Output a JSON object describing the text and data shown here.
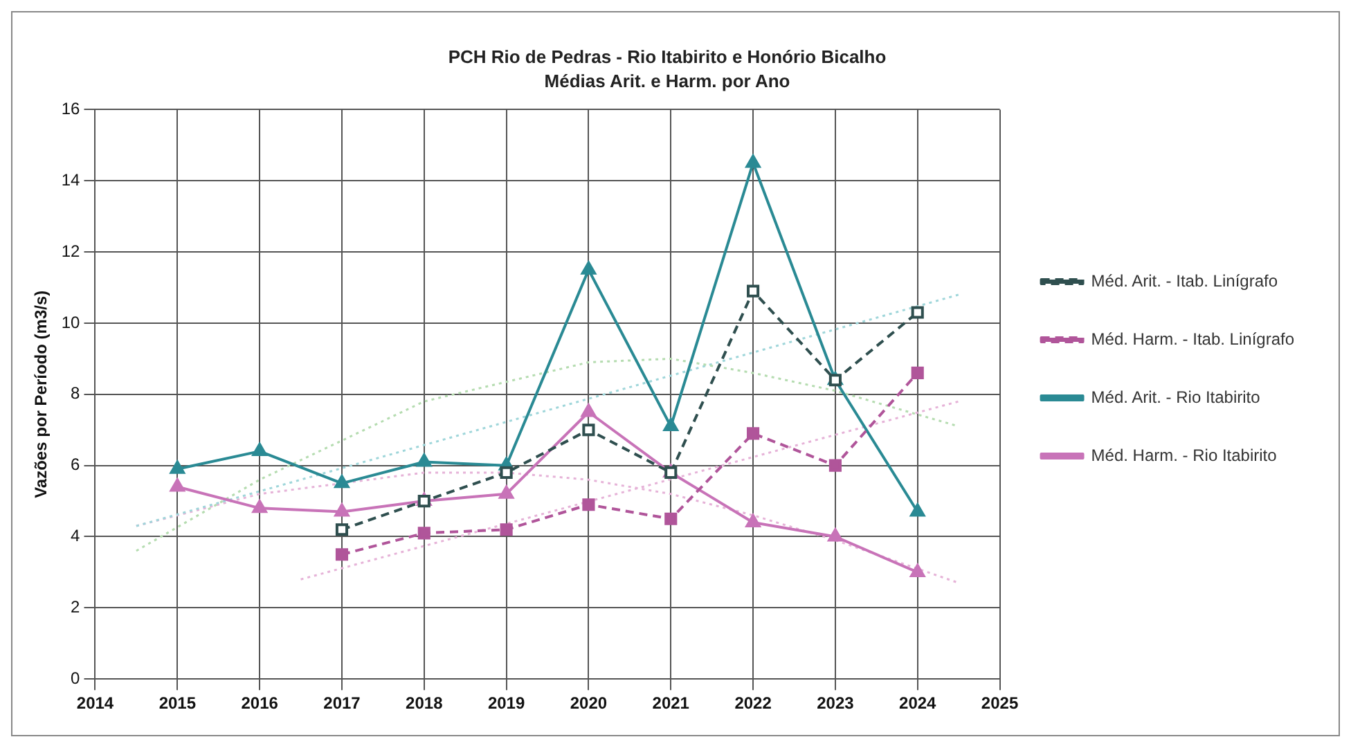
{
  "chart_data": {
    "type": "line",
    "title": "PCH Rio de Pedras - Rio Itabirito e Honório Bicalho",
    "subtitle": "Médias Arit. e Harm. por Ano",
    "ylabel": "Vazões por Período (m3/s)",
    "x": [
      2015,
      2016,
      2017,
      2018,
      2019,
      2020,
      2021,
      2022,
      2023,
      2024
    ],
    "xlim": [
      2014,
      2025
    ],
    "xticks": [
      2014,
      2015,
      2016,
      2017,
      2018,
      2019,
      2020,
      2021,
      2022,
      2023,
      2024,
      2025
    ],
    "ylim": [
      0,
      16
    ],
    "yticks": [
      0,
      2,
      4,
      6,
      8,
      10,
      12,
      14,
      16
    ],
    "grid": true,
    "legend": "right",
    "series": [
      {
        "name": "Méd. Arit. - Itab. Linígrafo",
        "color": "#2f4f4f",
        "marker": "square",
        "line_style": "dashed",
        "values": [
          null,
          null,
          4.2,
          5.0,
          5.8,
          7.0,
          5.8,
          10.9,
          8.4,
          10.3
        ]
      },
      {
        "name": "Méd. Harm. - Itab. Linígrafo",
        "color": "#b0559a",
        "marker": "square",
        "line_style": "dashed",
        "values": [
          null,
          null,
          3.5,
          4.1,
          4.2,
          4.9,
          4.5,
          6.9,
          6.0,
          8.6
        ]
      },
      {
        "name": "Méd. Arit. - Rio Itabirito",
        "color": "#2a8a94",
        "marker": "triangle",
        "line_style": "solid",
        "values": [
          5.9,
          6.4,
          5.5,
          6.1,
          6.0,
          11.5,
          7.1,
          14.5,
          8.4,
          4.7
        ]
      },
      {
        "name": "Méd. Harm. - Rio Itabirito",
        "color": "#c873b8",
        "marker": "triangle",
        "line_style": "solid",
        "values": [
          5.4,
          4.8,
          4.7,
          5.0,
          5.2,
          7.5,
          5.8,
          4.4,
          4.0,
          3.0
        ]
      },
      {
        "color": "#b5dcb0",
        "marker": "none",
        "line_style": "dotted",
        "x": [
          2014.5,
          2016,
          2018,
          2020,
          2021,
          2022,
          2023,
          2024.5
        ],
        "values": [
          3.6,
          5.6,
          7.8,
          8.9,
          9.0,
          8.6,
          8.1,
          7.1
        ]
      },
      {
        "color": "#9fd6da",
        "marker": "none",
        "line_style": "dotted",
        "x": [
          2014.5,
          2024.5
        ],
        "values": [
          4.3,
          10.8
        ]
      },
      {
        "color": "#e6b3d8",
        "marker": "none",
        "line_style": "dotted",
        "x": [
          2014.5,
          2016,
          2017,
          2018,
          2019,
          2020,
          2021,
          2022,
          2023,
          2024.5
        ],
        "values": [
          4.3,
          5.2,
          5.5,
          5.8,
          5.8,
          5.6,
          5.2,
          4.6,
          3.9,
          2.7
        ]
      },
      {
        "color": "#e6b3d8",
        "marker": "none",
        "line_style": "dotted",
        "x": [
          2016.5,
          2024.5
        ],
        "values": [
          2.8,
          7.8
        ]
      }
    ]
  }
}
